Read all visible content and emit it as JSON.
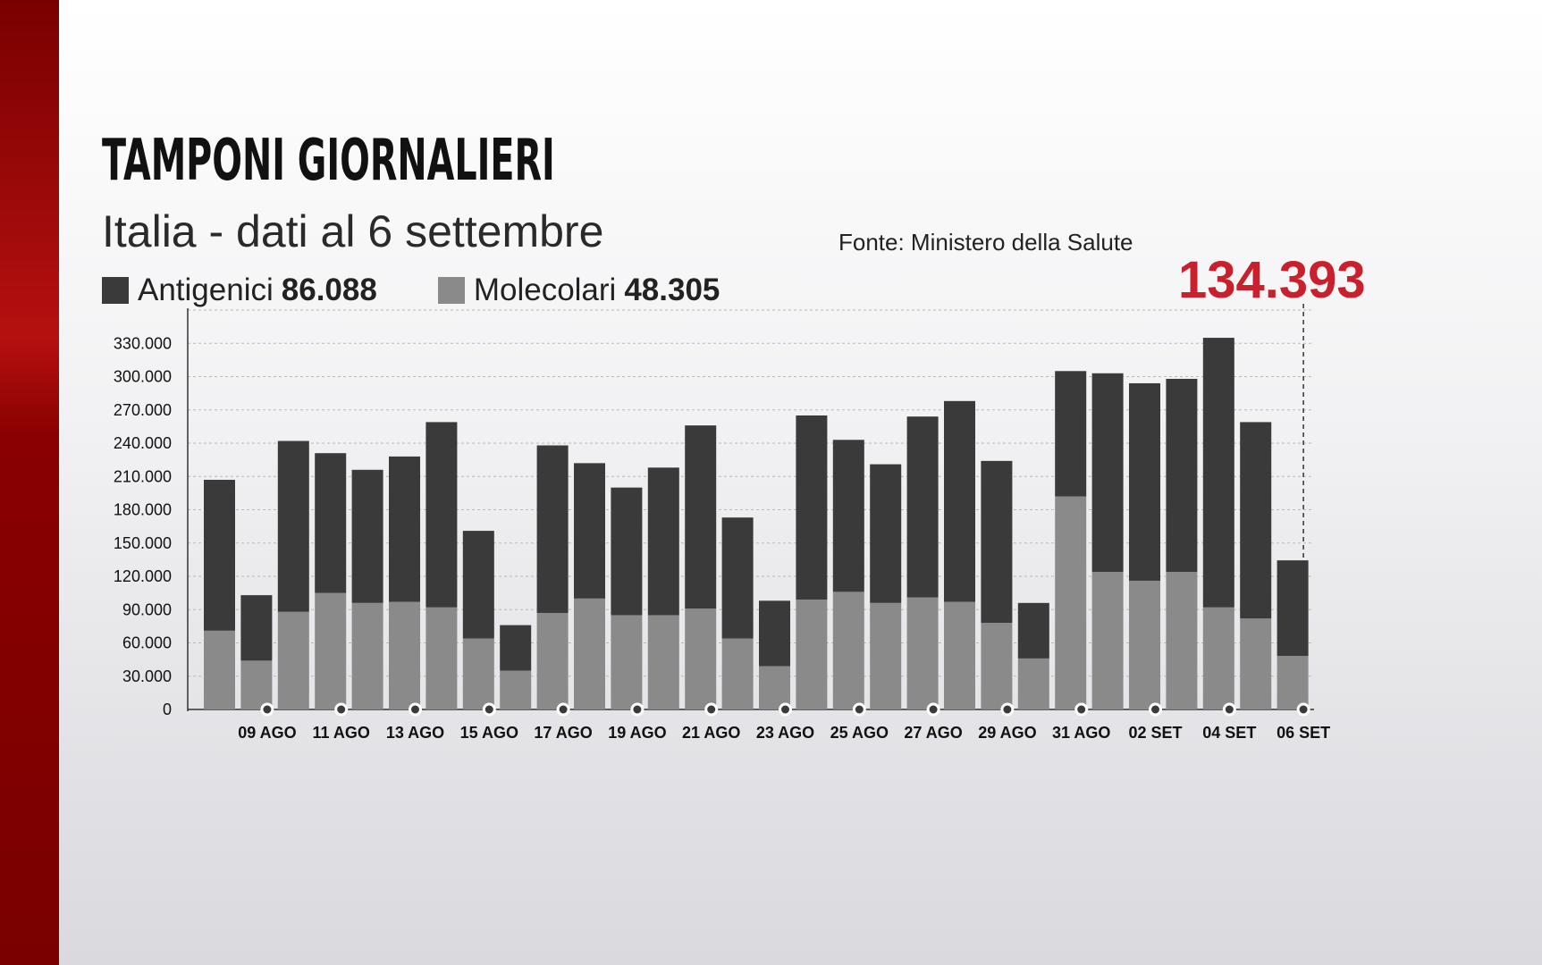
{
  "header": {
    "title": "TAMPONI GIORNALIERI",
    "subtitle": "Italia - dati al 6 settembre",
    "source": "Fonte: Ministero della Salute"
  },
  "legend": {
    "items": [
      {
        "label": "Antigenici",
        "value": "86.088",
        "color": "#3a3a3a"
      },
      {
        "label": "Molecolari",
        "value": "48.305",
        "color": "#8a8a8a"
      }
    ]
  },
  "highlight": {
    "total": "134.393",
    "color": "#c8202c"
  },
  "chart_data": {
    "type": "bar",
    "stacked": true,
    "title": "TAMPONI GIORNALIERI",
    "subtitle": "Italia - dati al 6 settembre",
    "categories": [
      "08 AGO",
      "09 AGO",
      "10 AGO",
      "11 AGO",
      "12 AGO",
      "13 AGO",
      "14 AGO",
      "15 AGO",
      "16 AGO",
      "17 AGO",
      "18 AGO",
      "19 AGO",
      "20 AGO",
      "21 AGO",
      "22 AGO",
      "23 AGO",
      "24 AGO",
      "25 AGO",
      "26 AGO",
      "27 AGO",
      "28 AGO",
      "29 AGO",
      "30 AGO",
      "31 AGO",
      "01 SET",
      "02 SET",
      "03 SET",
      "04 SET",
      "05 SET",
      "06 SET"
    ],
    "tick_labels": [
      "09 AGO",
      "11 AGO",
      "13 AGO",
      "15 AGO",
      "17 AGO",
      "19 AGO",
      "21 AGO",
      "23 AGO",
      "25 AGO",
      "27 AGO",
      "29 AGO",
      "31 AGO",
      "02 SET",
      "04 SET",
      "06 SET"
    ],
    "series": [
      {
        "name": "Molecolari",
        "color": "#8a8a8a",
        "values": [
          71000,
          44000,
          88000,
          105000,
          96000,
          97000,
          92000,
          64000,
          35000,
          87000,
          100000,
          85000,
          85000,
          91000,
          64000,
          39000,
          99000,
          106000,
          96000,
          101000,
          97000,
          78000,
          46000,
          192000,
          124000,
          116000,
          124000,
          92000,
          82000,
          48305
        ]
      },
      {
        "name": "Antigenici",
        "color": "#3a3a3a",
        "values": [
          136000,
          59000,
          154000,
          126000,
          120000,
          131000,
          167000,
          97000,
          41000,
          151000,
          122000,
          115000,
          133000,
          165000,
          109000,
          59000,
          166000,
          137000,
          125000,
          163000,
          181000,
          146000,
          50000,
          113000,
          179000,
          178000,
          174000,
          243000,
          177000,
          86088
        ]
      }
    ],
    "totals_highlight": {
      "category": "06 SET",
      "total": "134.393"
    },
    "y_ticks": [
      "0",
      "30.000",
      "60.000",
      "90.000",
      "120.000",
      "150.000",
      "180.000",
      "210.000",
      "240.000",
      "270.000",
      "300.000",
      "330.000"
    ],
    "ylim": [
      0,
      360000
    ],
    "grid": true
  }
}
